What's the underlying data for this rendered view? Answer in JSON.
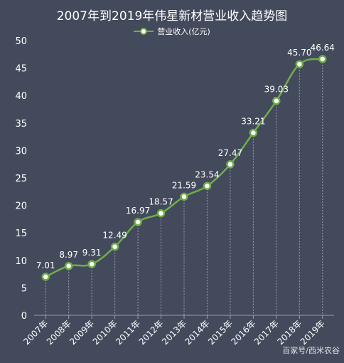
{
  "chart_data": {
    "type": "line",
    "title": "2007年到2019年伟星新材营业收入趋势图",
    "categories": [
      "2007年",
      "2008年",
      "2009年",
      "2010年",
      "2011年",
      "2012年",
      "2013年",
      "2014年",
      "2015年",
      "2016年",
      "2017年",
      "2018年",
      "2019年"
    ],
    "series": [
      {
        "name": "营业收入(亿元)",
        "values": [
          7.01,
          8.97,
          9.31,
          12.49,
          16.97,
          18.57,
          21.59,
          23.54,
          27.47,
          33.21,
          39.03,
          45.7,
          46.64
        ]
      }
    ],
    "data_labels": [
      "7.01",
      "8.97",
      "9.31",
      "12.49",
      "16.97",
      "18.57",
      "21.59",
      "23.54",
      "27.47",
      "33.21",
      "39.03",
      "45.70",
      "46.64"
    ],
    "ylim": [
      0,
      50
    ],
    "yticks": [
      "0",
      "5",
      "10",
      "15",
      "20",
      "25",
      "30",
      "35",
      "40",
      "45",
      "50"
    ],
    "legend_position": "top",
    "grid": false,
    "colors": {
      "background": "#434a5c",
      "line": "#70ad47",
      "text": "#ffffff",
      "guide": "#9aa0ad"
    }
  },
  "watermark": "百家号/西米农谷"
}
